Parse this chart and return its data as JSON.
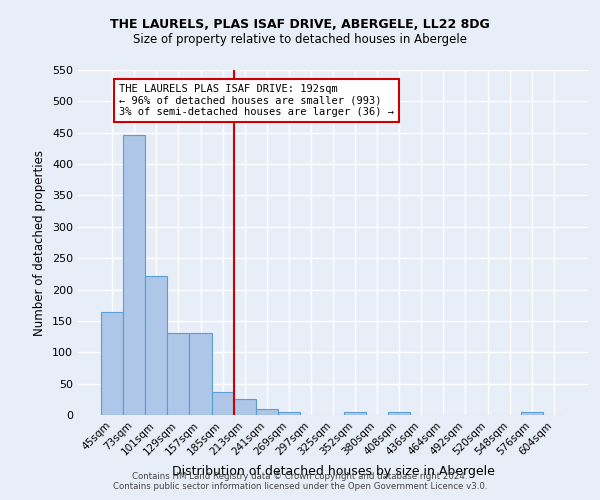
{
  "title1": "THE LAURELS, PLAS ISAF DRIVE, ABERGELE, LL22 8DG",
  "title2": "Size of property relative to detached houses in Abergele",
  "xlabel": "Distribution of detached houses by size in Abergele",
  "ylabel": "Number of detached properties",
  "footnote1": "Contains HM Land Registry data © Crown copyright and database right 2024.",
  "footnote2": "Contains public sector information licensed under the Open Government Licence v3.0.",
  "bar_labels": [
    "45sqm",
    "73sqm",
    "101sqm",
    "129sqm",
    "157sqm",
    "185sqm",
    "213sqm",
    "241sqm",
    "269sqm",
    "297sqm",
    "325sqm",
    "352sqm",
    "380sqm",
    "408sqm",
    "436sqm",
    "464sqm",
    "492sqm",
    "520sqm",
    "548sqm",
    "576sqm",
    "604sqm"
  ],
  "bar_values": [
    165,
    447,
    222,
    130,
    130,
    36,
    25,
    10,
    5,
    0,
    0,
    5,
    0,
    5,
    0,
    0,
    0,
    0,
    0,
    5,
    0
  ],
  "bar_color": "#aec6e8",
  "bar_edge_color": "#5a9fd4",
  "bg_color": "#e8eef8",
  "grid_color": "#ffffff",
  "vline_x": 5.5,
  "vline_color": "#cc0000",
  "ylim": [
    0,
    550
  ],
  "yticks": [
    0,
    50,
    100,
    150,
    200,
    250,
    300,
    350,
    400,
    450,
    500,
    550
  ],
  "annotation_title": "THE LAURELS PLAS ISAF DRIVE: 192sqm",
  "annotation_line2": "← 96% of detached houses are smaller (993)",
  "annotation_line3": "3% of semi-detached houses are larger (36) →",
  "annotation_box_color": "#ffffff",
  "annotation_border_color": "#cc0000"
}
